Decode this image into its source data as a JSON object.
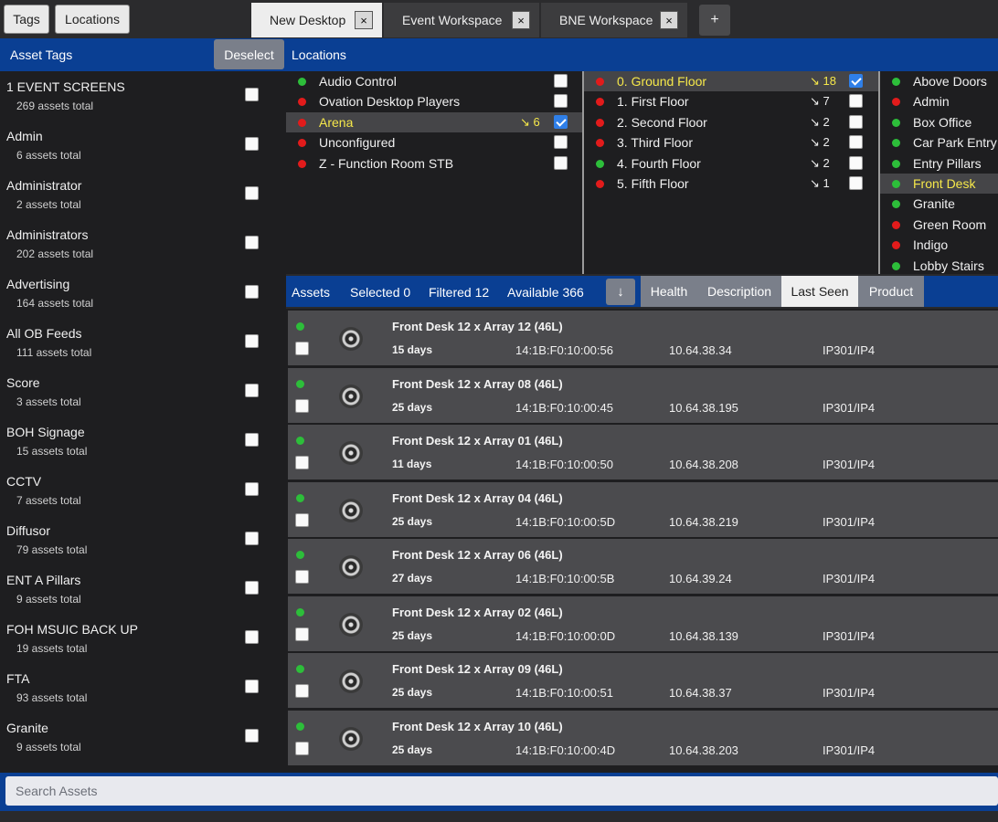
{
  "top": {
    "tags_button": "Tags",
    "locations_button": "Locations",
    "tabs": [
      {
        "label": "New Desktop",
        "close": "×"
      },
      {
        "label": "Event Workspace",
        "close": "×"
      },
      {
        "label": "BNE Workspace",
        "close": "×"
      }
    ],
    "add_tab": "+"
  },
  "tags_panel": {
    "title": "Asset Tags",
    "deselect": "Deselect",
    "items": [
      {
        "name": "1 EVENT SCREENS",
        "count": "269 assets total"
      },
      {
        "name": "Admin",
        "count": "6 assets total"
      },
      {
        "name": "Administrator",
        "count": "2 assets total"
      },
      {
        "name": "Administrators",
        "count": "202 assets total"
      },
      {
        "name": "Advertising",
        "count": "164 assets total"
      },
      {
        "name": "All OB Feeds",
        "count": "111 assets total"
      },
      {
        "name": "Score",
        "count": "3 assets total"
      },
      {
        "name": "BOH Signage",
        "count": "15 assets total"
      },
      {
        "name": "CCTV",
        "count": "7 assets total"
      },
      {
        "name": "Diffusor",
        "count": "79 assets total"
      },
      {
        "name": "ENT A Pillars",
        "count": "9 assets total"
      },
      {
        "name": "FOH MSUIC BACK UP",
        "count": "19 assets total"
      },
      {
        "name": "FTA",
        "count": "93 assets total"
      },
      {
        "name": "Granite",
        "count": "9 assets total"
      }
    ]
  },
  "locations": {
    "title": "Locations",
    "col1": [
      {
        "label": "Audio Control",
        "status": "green",
        "count": "",
        "checked": false
      },
      {
        "label": "Ovation Desktop Players",
        "status": "red",
        "count": "",
        "checked": false
      },
      {
        "label": "Arena",
        "status": "red",
        "count": "↘ 6",
        "checked": true,
        "selected": true
      },
      {
        "label": "Unconfigured",
        "status": "red",
        "count": "",
        "checked": false
      },
      {
        "label": "Z - Function Room STB",
        "status": "red",
        "count": "",
        "checked": false
      }
    ],
    "col2": [
      {
        "label": "0. Ground Floor",
        "status": "red",
        "count": "↘ 18",
        "checked": true,
        "selected": true
      },
      {
        "label": "1. First Floor",
        "status": "red",
        "count": "↘ 7",
        "checked": false
      },
      {
        "label": "2. Second Floor",
        "status": "red",
        "count": "↘ 2",
        "checked": false
      },
      {
        "label": "3. Third Floor",
        "status": "red",
        "count": "↘ 2",
        "checked": false
      },
      {
        "label": "4. Fourth Floor",
        "status": "green",
        "count": "↘ 2",
        "checked": false
      },
      {
        "label": "5. Fifth Floor",
        "status": "red",
        "count": "↘ 1",
        "checked": false
      }
    ],
    "col3": [
      {
        "label": "Above Doors",
        "status": "green"
      },
      {
        "label": "Admin",
        "status": "red"
      },
      {
        "label": "Box Office",
        "status": "green"
      },
      {
        "label": "Car Park Entry",
        "status": "green"
      },
      {
        "label": "Entry Pillars",
        "status": "green"
      },
      {
        "label": "Front Desk",
        "status": "green",
        "selected": true
      },
      {
        "label": "Granite",
        "status": "green"
      },
      {
        "label": "Green Room",
        "status": "red"
      },
      {
        "label": "Indigo",
        "status": "red"
      },
      {
        "label": "Lobby Stairs",
        "status": "green"
      }
    ]
  },
  "assets_bar": {
    "assets": "Assets",
    "selected": "Selected 0",
    "filtered": "Filtered 12",
    "available": "Available 366",
    "sort_icon": "↓",
    "columns": [
      "Health",
      "Description",
      "Last Seen",
      "Product"
    ],
    "active_column": "Last Seen"
  },
  "assets": [
    {
      "name": "Front Desk 12 x Array 12 (46L)",
      "last_seen": "15 days",
      "mac": "14:1B:F0:10:00:56",
      "ip": "10.64.38.34",
      "product": "IP301/IP4"
    },
    {
      "name": "Front Desk 12 x Array 08 (46L)",
      "last_seen": "25 days",
      "mac": "14:1B:F0:10:00:45",
      "ip": "10.64.38.195",
      "product": "IP301/IP4"
    },
    {
      "name": "Front Desk 12 x Array 01 (46L)",
      "last_seen": "11 days",
      "mac": "14:1B:F0:10:00:50",
      "ip": "10.64.38.208",
      "product": "IP301/IP4"
    },
    {
      "name": "Front Desk 12 x Array 04 (46L)",
      "last_seen": "25 days",
      "mac": "14:1B:F0:10:00:5D",
      "ip": "10.64.38.219",
      "product": "IP301/IP4"
    },
    {
      "name": "Front Desk 12 x Array 06 (46L)",
      "last_seen": "27 days",
      "mac": "14:1B:F0:10:00:5B",
      "ip": "10.64.39.24",
      "product": "IP301/IP4"
    },
    {
      "name": "Front Desk 12 x Array 02 (46L)",
      "last_seen": "25 days",
      "mac": "14:1B:F0:10:00:0D",
      "ip": "10.64.38.139",
      "product": "IP301/IP4"
    },
    {
      "name": "Front Desk 12 x Array 09 (46L)",
      "last_seen": "25 days",
      "mac": "14:1B:F0:10:00:51",
      "ip": "10.64.38.37",
      "product": "IP301/IP4"
    },
    {
      "name": "Front Desk 12 x Array 10 (46L)",
      "last_seen": "25 days",
      "mac": "14:1B:F0:10:00:4D",
      "ip": "10.64.38.203",
      "product": "IP301/IP4"
    }
  ],
  "search": {
    "placeholder": "Search Assets"
  },
  "colors": {
    "header_blue": "#0a3f93",
    "selected_yellow": "#f6e84a",
    "status_red": "#e21b1b",
    "status_green": "#2dbe3a"
  }
}
